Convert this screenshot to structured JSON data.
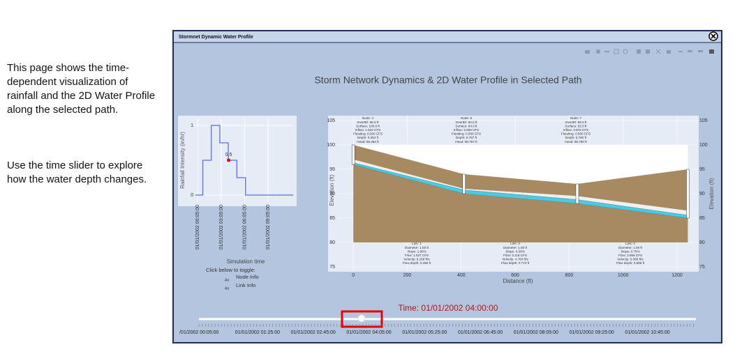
{
  "intro": [
    "This page shows the time-dependent visualization of rainfall and the 2D Water Profile along the selected path.",
    "Use the time slider to explore how the water depth changes."
  ],
  "window_title": "Stormnet Dynamic Water Profile",
  "dashboard_title": "Storm Network Dynamics & 2D Water Profile in Selected Path",
  "rainfall": {
    "type": "line",
    "ylabel": "Rainfall Intensity (in/hr)",
    "xlabel": "Simulation time",
    "color": "#5b6ee1",
    "x": [
      -0.3,
      0.64,
      1.73,
      2.82,
      3.9,
      5,
      6.1,
      10.2
    ],
    "values": [
      0,
      0.5,
      1,
      0.75,
      0.5,
      0.25,
      0,
      0
    ],
    "xlim": [
      -0.3,
      12.2
    ],
    "ylim": [
      -0.1,
      1.1
    ],
    "yticks": [
      0,
      1
    ],
    "xticks": [
      {
        "value": 0,
        "label": "01/01/2002 00:05:00"
      },
      {
        "value": 3,
        "label": "01/01/2002 03:05:00"
      },
      {
        "value": 6,
        "label": "01/01/2002 06:05:00"
      },
      {
        "value": 9,
        "label": "01/01/2002 09:05:00"
      }
    ],
    "marker": {
      "x": 3.95,
      "y": 0.5,
      "color": "#e0001b"
    }
  },
  "toggle_prompt": "Click below to toggle:",
  "toggles": [
    {
      "icon": "Aa",
      "label": "Node Info"
    },
    {
      "icon": "Aa",
      "label": "Link Info"
    }
  ],
  "profile": {
    "type": "area",
    "xlabel": "Distance (ft)",
    "ylabel": "Elevation (ft)",
    "xlim": [
      -60,
      1275
    ],
    "ylim": [
      74,
      106
    ],
    "xticks": [
      0,
      200,
      400,
      600,
      800,
      1000,
      1200
    ],
    "yticks": [
      75,
      80,
      85,
      90,
      95,
      100,
      105
    ],
    "node_x": [
      0,
      410,
      830,
      1240
    ],
    "ground": [
      100,
      94,
      92,
      95
    ],
    "crown": [
      97,
      91,
      89.5,
      86.5
    ],
    "invert": [
      96,
      90,
      88,
      85
    ],
    "water": [
      96.354,
      90.767,
      88.78,
      85.585
    ],
    "nodes": [
      [
        "Node: 4",
        "InvertEl: 96.0 ft",
        "Surface: 100.0 ft",
        "Inflow: 1.522 CFS",
        "Flooding: 0.000 CFS",
        "Depth: 0.354 ft",
        "Head: 96.354 ft"
      ],
      [
        "Node: 5",
        "InvertEl: 90.0 ft",
        "Surface: 94.0 ft",
        "Inflow: 3.059 CFS",
        "Flooding: 0.000 CFS",
        "Depth: 0.767 ft",
        "Head: 90.767 ft"
      ],
      [
        "Node: 7",
        "InvertEl: 88.0 ft",
        "Surface: 92.0 ft",
        "Inflow: 3.876 CFS",
        "Flooding: 0.000 CFS",
        "Depth: 0.780 ft",
        "Head: 88.780 ft"
      ]
    ],
    "links": [
      [
        "Link: 1",
        "Diameter: 1.00 ft",
        "Slope: 1.50%",
        "Flow: 1.537 CFS",
        "Velocity: 6.159 ft/s",
        "Flow depth: 0.355 ft"
      ],
      [
        "Link: 3",
        "Diameter: 1.00 ft",
        "Slope: 0.50%",
        "Flow: 3.118 CFS",
        "Velocity: 4.764 ft/s",
        "Flow depth: 0.773 ft"
      ],
      [
        "Link: 4",
        "Diameter: 1.50 ft",
        "Slope: 0.75%",
        "Flow: 3.858 CFS",
        "Velocity: 6.068 ft/s",
        "Flow depth: 0.585 ft"
      ]
    ]
  },
  "time_label": "Time: 01/01/2002 04:00:00",
  "slider_labels": [
    "/01/2002 00:05:00",
    "01/01/2002 01:25:00",
    "01/01/2002 02:45:00",
    "01/01/2002 04:05:00",
    "01/01/2002 05:25:00",
    "01/01/2002 06:45:00",
    "01/01/2002 08:05:00",
    "01/01/2002 09:25:00",
    "01/01/2002 10:45:00"
  ]
}
